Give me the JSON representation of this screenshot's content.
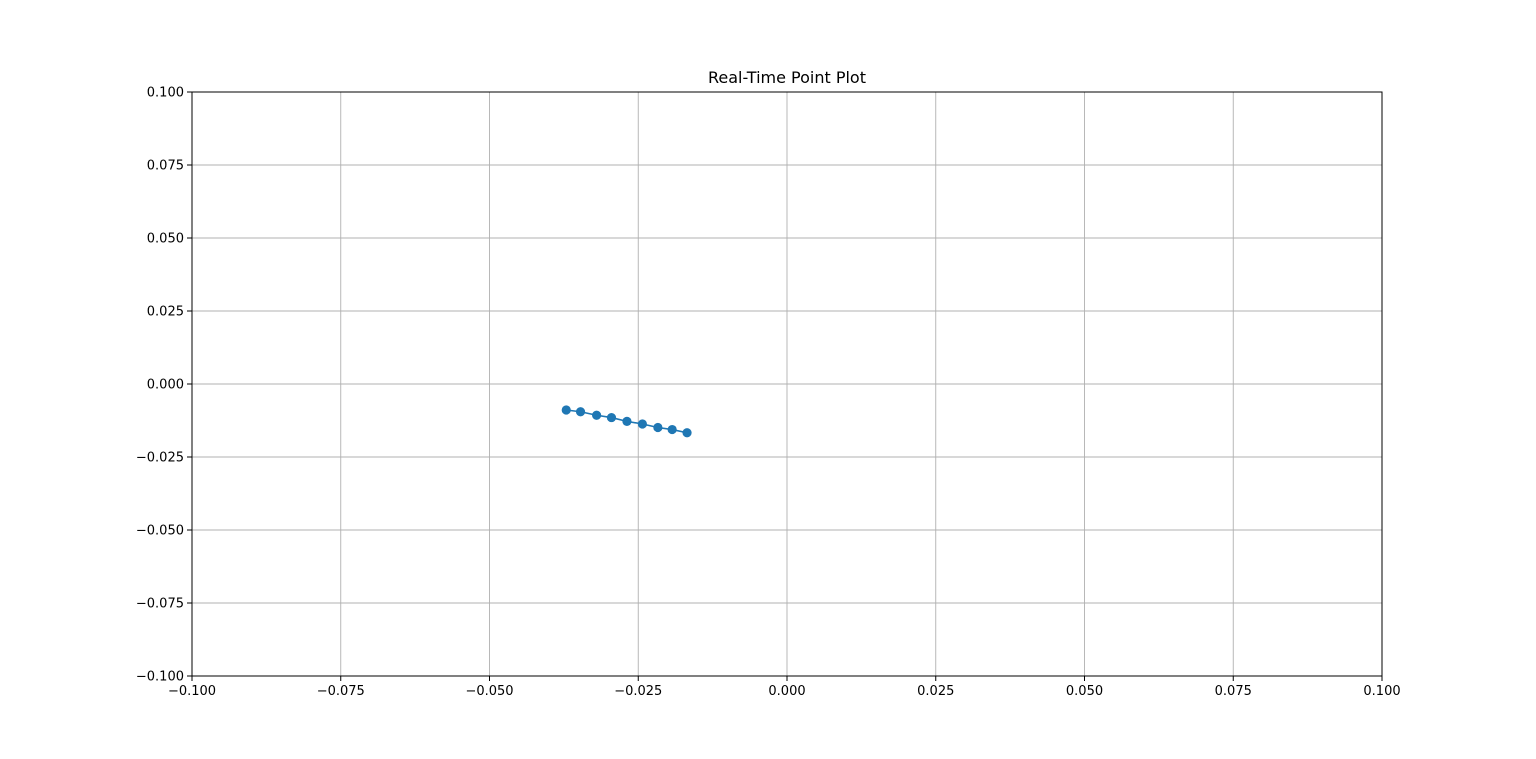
{
  "chart_data": {
    "type": "line",
    "title": "Real-Time Point Plot",
    "xlabel": "",
    "ylabel": "",
    "xlim": [
      -0.1,
      0.1
    ],
    "ylim": [
      -0.1,
      0.1
    ],
    "grid": true,
    "x_ticks": [
      -0.1,
      -0.075,
      -0.05,
      -0.025,
      0.0,
      0.025,
      0.05,
      0.075,
      0.1
    ],
    "y_ticks": [
      -0.1,
      -0.075,
      -0.05,
      -0.025,
      0.0,
      0.025,
      0.05,
      0.075,
      0.1
    ],
    "x_tick_labels": [
      "−0.100",
      "−0.075",
      "−0.050",
      "−0.025",
      "0.000",
      "0.025",
      "0.050",
      "0.075",
      "0.100"
    ],
    "y_tick_labels": [
      "−0.100",
      "−0.075",
      "−0.050",
      "−0.025",
      "0.000",
      "0.025",
      "0.050",
      "0.075",
      "0.100"
    ],
    "series": [
      {
        "color": "#1f77b4",
        "marker": "circle",
        "x": [
          -0.0371,
          -0.0347,
          -0.032,
          -0.0295,
          -0.0269,
          -0.0243,
          -0.0217,
          -0.0193,
          -0.0168
        ],
        "y": [
          -0.0089,
          -0.0095,
          -0.0107,
          -0.0115,
          -0.0128,
          -0.0137,
          -0.0149,
          -0.0156,
          -0.0167
        ]
      }
    ],
    "colors": {
      "grid": "#b0b0b0",
      "axes": "#000000",
      "background": "#ffffff"
    }
  }
}
